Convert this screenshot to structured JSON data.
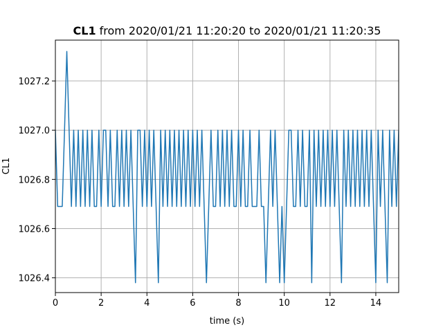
{
  "chart_data": {
    "type": "line",
    "title_emphasis": "CL1",
    "title": "from 2020/01/21 11:20:20 to 2020/01/21 11:20:35",
    "xlabel": "time (s)",
    "ylabel": "CL1",
    "color": "#1f77b4",
    "grid": true,
    "xlim": [
      0,
      15
    ],
    "xticks": [
      0,
      2,
      4,
      6,
      8,
      10,
      12,
      14
    ],
    "ylim": [
      1026.34,
      1027.366
    ],
    "yticks": [
      1026.4,
      1026.6,
      1026.8,
      {
        "value": 1027,
        "label": "1027.0"
      },
      1027.2
    ],
    "x": [
      0,
      0.1,
      0.2,
      0.3,
      0.4,
      0.5,
      0.6,
      0.7,
      0.8,
      0.9,
      1,
      1.1,
      1.2,
      1.3,
      1.4,
      1.5,
      1.6,
      1.7,
      1.8,
      1.9,
      2,
      2.1,
      2.2,
      2.3,
      2.4,
      2.5,
      2.6,
      2.7,
      2.8,
      2.9,
      3,
      3.1,
      3.2,
      3.3,
      3.4,
      3.5,
      3.6,
      3.7,
      3.8,
      3.9,
      4,
      4.1,
      4.2,
      4.3,
      4.4,
      4.5,
      4.6,
      4.7,
      4.8,
      4.9,
      5,
      5.1,
      5.2,
      5.3,
      5.4,
      5.5,
      5.6,
      5.7,
      5.8,
      5.9,
      6,
      6.1,
      6.2,
      6.3,
      6.4,
      6.5,
      6.6,
      6.7,
      6.8,
      6.9,
      7,
      7.1,
      7.2,
      7.3,
      7.4,
      7.5,
      7.6,
      7.7,
      7.8,
      7.9,
      8,
      8.1,
      8.2,
      8.3,
      8.4,
      8.5,
      8.6,
      8.7,
      8.8,
      8.9,
      9,
      9.1,
      9.2,
      9.3,
      9.4,
      9.5,
      9.6,
      9.7,
      9.8,
      9.9,
      10,
      10.1,
      10.2,
      10.3,
      10.4,
      10.5,
      10.6,
      10.7,
      10.8,
      10.9,
      11,
      11.1,
      11.2,
      11.3,
      11.4,
      11.5,
      11.6,
      11.7,
      11.8,
      11.9,
      12,
      12.1,
      12.2,
      12.3,
      12.4,
      12.5,
      12.6,
      12.7,
      12.8,
      12.9,
      13,
      13.1,
      13.2,
      13.3,
      13.4,
      13.5,
      13.6,
      13.7,
      13.8,
      13.9,
      14,
      14.1,
      14.2,
      14.3,
      14.4,
      14.5,
      14.6,
      14.7,
      14.8,
      14.9,
      15
    ],
    "values": [
      1027.0,
      1026.69,
      1026.69,
      1026.69,
      1027.0,
      1027.32,
      1027.0,
      1026.69,
      1027.0,
      1026.69,
      1027.0,
      1026.69,
      1027.0,
      1026.69,
      1027.0,
      1026.69,
      1027.0,
      1026.69,
      1026.69,
      1027.0,
      1026.69,
      1027.0,
      1027.0,
      1026.69,
      1027.0,
      1026.69,
      1026.69,
      1027.0,
      1026.69,
      1027.0,
      1026.69,
      1027.0,
      1026.69,
      1027.0,
      1026.69,
      1026.38,
      1027.0,
      1027.0,
      1026.69,
      1027.0,
      1026.69,
      1027.0,
      1026.69,
      1027.0,
      1026.69,
      1026.38,
      1027.0,
      1026.69,
      1027.0,
      1026.69,
      1027.0,
      1026.69,
      1027.0,
      1026.69,
      1027.0,
      1026.69,
      1027.0,
      1026.69,
      1027.0,
      1026.69,
      1027.0,
      1026.69,
      1027.0,
      1026.69,
      1027.0,
      1026.69,
      1026.38,
      1026.69,
      1027.0,
      1026.69,
      1026.69,
      1027.0,
      1026.69,
      1027.0,
      1026.69,
      1027.0,
      1026.69,
      1027.0,
      1026.69,
      1026.69,
      1027.0,
      1026.69,
      1027.0,
      1026.69,
      1026.69,
      1027.0,
      1026.69,
      1026.69,
      1026.69,
      1027.0,
      1026.69,
      1026.69,
      1026.38,
      1026.69,
      1027.0,
      1026.69,
      1027.0,
      1026.69,
      1026.38,
      1026.69,
      1026.38,
      1026.69,
      1027.0,
      1027.0,
      1026.69,
      1026.69,
      1027.0,
      1026.69,
      1027.0,
      1026.69,
      1026.69,
      1027.0,
      1026.38,
      1027.0,
      1026.69,
      1027.0,
      1026.69,
      1027.0,
      1026.69,
      1027.0,
      1026.69,
      1027.0,
      1026.69,
      1027.0,
      1026.69,
      1026.38,
      1027.0,
      1026.69,
      1027.0,
      1026.69,
      1027.0,
      1026.69,
      1027.0,
      1026.69,
      1027.0,
      1026.69,
      1027.0,
      1026.69,
      1027.0,
      1026.69,
      1026.38,
      1027.0,
      1026.69,
      1027.0,
      1026.69,
      1026.38,
      1027.0,
      1026.69,
      1027.0,
      1026.69,
      1027.0
    ]
  }
}
